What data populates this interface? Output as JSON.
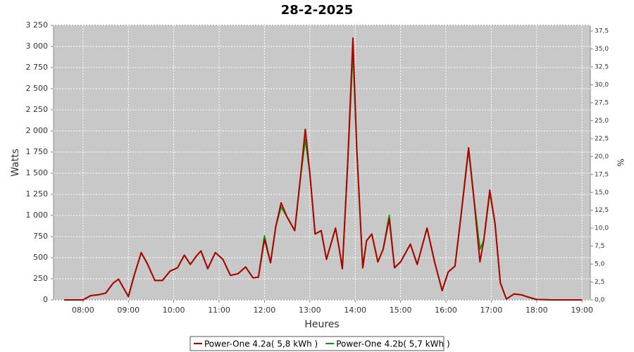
{
  "chart_data": {
    "type": "line",
    "title": "28-2-2025",
    "xlabel": "Heures",
    "ylabel": "Watts",
    "y2label": "%",
    "x": [
      "07:35",
      "08:00",
      "08:10",
      "08:20",
      "08:30",
      "08:40",
      "08:47",
      "09:00",
      "09:08",
      "09:17",
      "09:25",
      "09:35",
      "09:45",
      "09:55",
      "10:05",
      "10:14",
      "10:22",
      "10:30",
      "10:36",
      "10:45",
      "10:55",
      "11:05",
      "11:15",
      "11:25",
      "11:35",
      "11:45",
      "11:52",
      "12:00",
      "12:08",
      "12:15",
      "12:22",
      "12:30",
      "12:40",
      "12:47",
      "12:54",
      "13:00",
      "13:07",
      "13:15",
      "13:22",
      "13:34",
      "13:39",
      "13:43",
      "13:50",
      "13:57",
      "14:02",
      "14:10",
      "14:15",
      "14:22",
      "14:30",
      "14:37",
      "14:45",
      "14:52",
      "15:00",
      "15:13",
      "15:22",
      "15:35",
      "15:45",
      "15:55",
      "16:03",
      "16:12",
      "16:20",
      "16:30",
      "16:37",
      "16:45",
      "16:50",
      "16:58",
      "17:05",
      "17:12",
      "17:20",
      "17:30",
      "17:40",
      "17:50",
      "18:00",
      "18:20",
      "19:00"
    ],
    "series": [
      {
        "name": "Power-One 4.2a( 5,8 kWh )",
        "color": "#b00000",
        "values": [
          0,
          0,
          50,
          60,
          80,
          200,
          245,
          40,
          300,
          560,
          430,
          230,
          230,
          340,
          380,
          530,
          420,
          520,
          580,
          370,
          560,
          480,
          290,
          310,
          390,
          260,
          270,
          720,
          440,
          870,
          1150,
          980,
          820,
          1400,
          2020,
          1500,
          780,
          820,
          480,
          850,
          600,
          370,
          1600,
          3100,
          1800,
          380,
          700,
          780,
          450,
          600,
          960,
          380,
          450,
          660,
          420,
          850,
          450,
          110,
          330,
          400,
          1000,
          1800,
          1200,
          450,
          700,
          1300,
          900,
          200,
          10,
          70,
          60,
          30,
          5,
          0,
          0
        ]
      },
      {
        "name": "Power-One 4.2b( 5,7 kWh )",
        "color": "#00a000",
        "values": [
          0,
          0,
          50,
          60,
          80,
          200,
          245,
          40,
          300,
          560,
          430,
          230,
          230,
          340,
          380,
          530,
          420,
          520,
          580,
          370,
          560,
          480,
          290,
          310,
          390,
          260,
          270,
          760,
          440,
          870,
          1100,
          980,
          820,
          1400,
          1900,
          1500,
          780,
          820,
          480,
          850,
          600,
          370,
          1600,
          2950,
          1800,
          380,
          700,
          780,
          450,
          600,
          1000,
          380,
          450,
          660,
          420,
          850,
          450,
          110,
          330,
          400,
          1000,
          1780,
          1200,
          600,
          700,
          1270,
          900,
          200,
          10,
          70,
          60,
          30,
          5,
          0,
          0
        ]
      }
    ],
    "xlim": [
      "07:21",
      "19:11"
    ],
    "xticks": [
      "08:00",
      "09:00",
      "10:00",
      "11:00",
      "12:00",
      "13:00",
      "14:00",
      "15:00",
      "16:00",
      "17:00",
      "18:00",
      "19:00"
    ],
    "ylim": [
      0,
      3250
    ],
    "yticks": [
      0,
      250,
      500,
      750,
      {
        "value": 1000,
        "label": "1 000"
      },
      {
        "value": 1250,
        "label": "1 250"
      },
      {
        "value": 1500,
        "label": "1 500"
      },
      {
        "value": 1750,
        "label": "1 750"
      },
      {
        "value": 2000,
        "label": "2 000"
      },
      {
        "value": 2250,
        "label": "2 250"
      },
      {
        "value": 2500,
        "label": "2 500"
      },
      {
        "value": 2750,
        "label": "2 750"
      },
      {
        "value": 3000,
        "label": "3 000"
      },
      {
        "value": 3250,
        "label": "3 250"
      }
    ],
    "y2lim": [
      0,
      38.3
    ],
    "y2ticks": [
      {
        "value": 0,
        "label": "0,0"
      },
      {
        "value": 2.5,
        "label": "2,5"
      },
      {
        "value": 5,
        "label": "5,0"
      },
      {
        "value": 7.5,
        "label": "7,5"
      },
      {
        "value": 10,
        "label": "10,0"
      },
      {
        "value": 12.5,
        "label": "12,5"
      },
      {
        "value": 15,
        "label": "15,0"
      },
      {
        "value": 17.5,
        "label": "17,5"
      },
      {
        "value": 20,
        "label": "20,0"
      },
      {
        "value": 22.5,
        "label": "22,5"
      },
      {
        "value": 25,
        "label": "25,0"
      },
      {
        "value": 27.5,
        "label": "27,5"
      },
      {
        "value": 30,
        "label": "30,0"
      },
      {
        "value": 32.5,
        "label": "32,5"
      },
      {
        "value": 35,
        "label": "35,0"
      },
      {
        "value": 37.5,
        "label": "37,5"
      }
    ],
    "grid": true,
    "legend": "bottom"
  }
}
